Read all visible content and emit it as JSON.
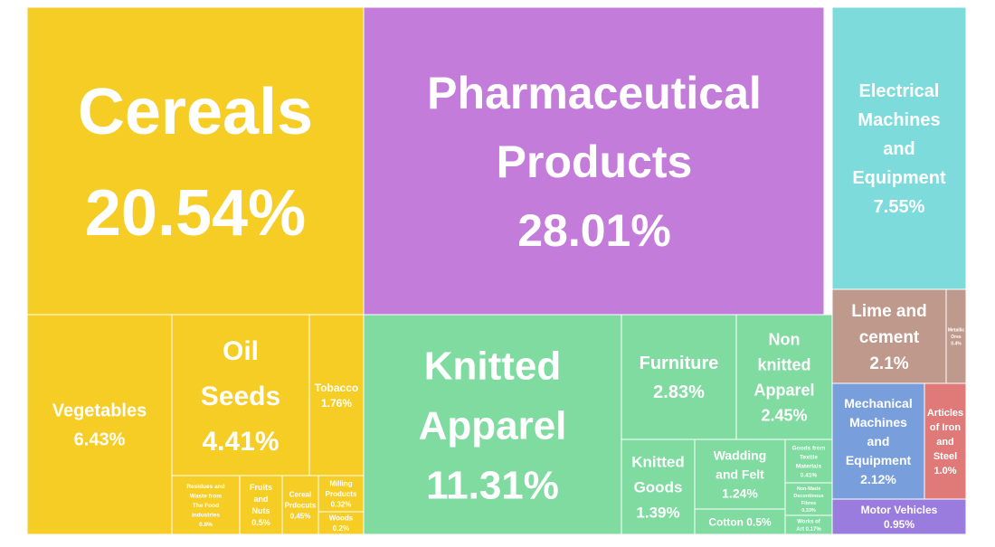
{
  "chart_data": {
    "type": "treemap",
    "colors": {
      "yellow": "#f5cd25",
      "purple": "#c47cdb",
      "green": "#80dba0",
      "cyan": "#7ddbdc",
      "taupe": "#bf9a8c",
      "blue": "#789fdc",
      "red": "#df7a79",
      "violet": "#9a7cdf"
    },
    "tiles": [
      {
        "label": "Cereals",
        "value_label": "20.54%",
        "value": 20.54,
        "color": "yellow"
      },
      {
        "label": "Pharmaceutical Products",
        "value_label": "28.01%",
        "value": 28.01,
        "color": "purple"
      },
      {
        "label": "Electrical Machines and Equipment",
        "value_label": "7.55%",
        "value": 7.55,
        "color": "cyan"
      },
      {
        "label": "Vegetables",
        "value_label": "6.43%",
        "value": 6.43,
        "color": "yellow"
      },
      {
        "label": "Oil Seeds",
        "value_label": "4.41%",
        "value": 4.41,
        "color": "yellow"
      },
      {
        "label": "Tobacco",
        "value_label": "1.76%",
        "value": 1.76,
        "color": "yellow"
      },
      {
        "label": "Residues and Waste from The Food industries",
        "value_label": "0.8%",
        "value": 0.8,
        "color": "yellow"
      },
      {
        "label": "Fruits and Nuts",
        "value_label": "0.5%",
        "value": 0.5,
        "color": "yellow"
      },
      {
        "label": "Cereal Prdocuts",
        "value_label": "0.45%",
        "value": 0.45,
        "color": "yellow"
      },
      {
        "label": "Milling Products",
        "value_label": "0.32%",
        "value": 0.32,
        "color": "yellow"
      },
      {
        "label": "Woods",
        "value_label": "0.2%",
        "value": 0.2,
        "color": "yellow"
      },
      {
        "label": "Knitted Apparel",
        "value_label": "11.31%",
        "value": 11.31,
        "color": "green"
      },
      {
        "label": "Furniture",
        "value_label": "2.83%",
        "value": 2.83,
        "color": "green"
      },
      {
        "label": "Non knitted Apparel",
        "value_label": "2.45%",
        "value": 2.45,
        "color": "green"
      },
      {
        "label": "Knitted Goods",
        "value_label": "1.39%",
        "value": 1.39,
        "color": "green"
      },
      {
        "label": "Wadding and Felt",
        "value_label": "1.24%",
        "value": 1.24,
        "color": "green"
      },
      {
        "label": "Cotton",
        "value_label": "0.5%",
        "value": 0.5,
        "color": "green"
      },
      {
        "label": "Goods from Textile Materials",
        "value_label": "0.41%",
        "value": 0.41,
        "color": "green"
      },
      {
        "label": "Non-Made Decontinous Fibres",
        "value_label": "0.33%",
        "value": 0.33,
        "color": "green"
      },
      {
        "label": "Works of Art",
        "value_label": "0.17%",
        "value": 0.17,
        "color": "green"
      },
      {
        "label": "Lime and cement",
        "value_label": "2.1%",
        "value": 2.1,
        "color": "taupe"
      },
      {
        "label": "Metallic Ores",
        "value_label": "0.4%",
        "value": 0.4,
        "color": "taupe"
      },
      {
        "label": "Mechanical Machines and Equipment",
        "value_label": "2.12%",
        "value": 2.12,
        "color": "blue"
      },
      {
        "label": "Articles of Iron and Steel",
        "value_label": "1.0%",
        "value": 1.0,
        "color": "red"
      },
      {
        "label": "Motor Vehicles",
        "value_label": "0.95%",
        "value": 0.95,
        "color": "violet"
      }
    ]
  }
}
